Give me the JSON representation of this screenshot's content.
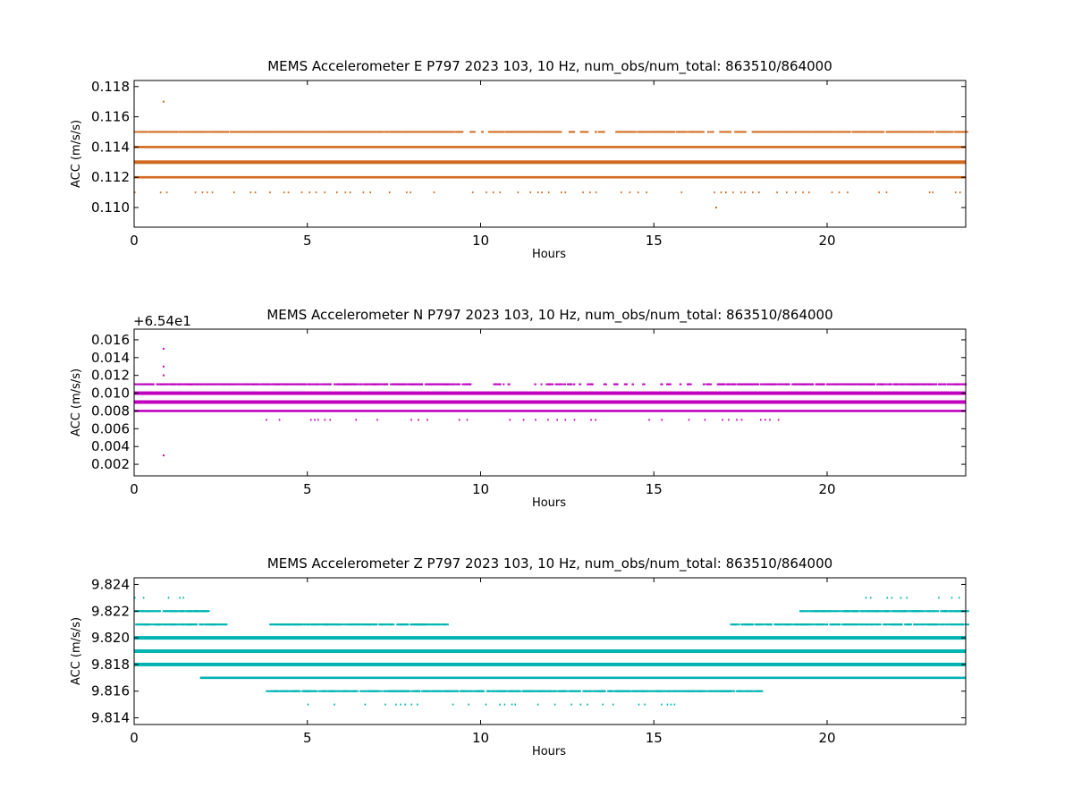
{
  "figure": {
    "background": "#ffffff"
  },
  "chart_data": [
    {
      "type": "scatter",
      "title": "MEMS Accelerometer E P797 2023 103, 10 Hz, num_obs/num_total: 863510/864000",
      "xlabel": "Hours",
      "ylabel": "ACC (m/s/s)",
      "xlim": [
        0,
        24
      ],
      "ylim": [
        0.1087,
        0.1184
      ],
      "x_ticks": [
        0,
        5,
        10,
        15,
        20
      ],
      "x_tick_labels": [
        "0",
        "5",
        "10",
        "15",
        "20"
      ],
      "y_ticks": [
        0.11,
        0.112,
        0.114,
        0.116,
        0.118
      ],
      "y_tick_labels": [
        "0.110",
        "0.112",
        "0.114",
        "0.116",
        "0.118"
      ],
      "offset_text": "",
      "color": "#d2691e",
      "bands": [
        {
          "y": 0.115,
          "density": "medium",
          "gaps": [
            [
              16.8,
              17.8
            ],
            [
              12.2,
              13.8
            ],
            [
              9.2,
              10.2
            ]
          ]
        },
        {
          "y": 0.114,
          "density": "dense",
          "gaps": []
        },
        {
          "y": 0.113,
          "density": "very-dense",
          "gaps": []
        },
        {
          "y": 0.112,
          "density": "dense",
          "gaps": []
        },
        {
          "y": 0.111,
          "density": "sparse",
          "gaps": []
        }
      ],
      "outliers": [
        {
          "x": 0.85,
          "y": 0.117
        },
        {
          "x": 16.8,
          "y": 0.11
        }
      ]
    },
    {
      "type": "scatter",
      "title": "MEMS Accelerometer N P797 2023 103, 10 Hz, num_obs/num_total: 863510/864000",
      "xlabel": "Hours",
      "ylabel": "ACC (m/s/s)",
      "xlim": [
        0,
        24
      ],
      "ylim": [
        0.0007,
        0.0172
      ],
      "x_ticks": [
        0,
        5,
        10,
        15,
        20
      ],
      "x_tick_labels": [
        "0",
        "5",
        "10",
        "15",
        "20"
      ],
      "y_ticks": [
        0.002,
        0.004,
        0.006,
        0.008,
        0.01,
        0.012,
        0.014,
        0.016
      ],
      "y_tick_labels": [
        "0.002",
        "0.004",
        "0.006",
        "0.008",
        "0.010",
        "0.012",
        "0.014",
        "0.016"
      ],
      "offset_text": "+6.54e1",
      "color": "#bf00bf",
      "bands": [
        {
          "y": 0.011,
          "density": "medium",
          "gaps": [
            [
              9.2,
              16.8
            ]
          ]
        },
        {
          "y": 0.01,
          "density": "very-dense",
          "gaps": []
        },
        {
          "y": 0.009,
          "density": "very-dense",
          "gaps": []
        },
        {
          "y": 0.008,
          "density": "dense",
          "gaps": []
        },
        {
          "y": 0.007,
          "density": "sparse",
          "range": [
            3.8,
            18.6
          ],
          "gaps": []
        }
      ],
      "outliers": [
        {
          "x": 0.85,
          "y": 0.015
        },
        {
          "x": 0.85,
          "y": 0.013
        },
        {
          "x": 0.85,
          "y": 0.012
        },
        {
          "x": 0.85,
          "y": 0.003
        }
      ]
    },
    {
      "type": "scatter",
      "title": "MEMS Accelerometer Z P797 2023 103, 10 Hz, num_obs/num_total: 863510/864000",
      "xlabel": "Hours",
      "ylabel": "ACC (m/s/s)",
      "xlim": [
        0,
        24
      ],
      "ylim": [
        9.8135,
        9.8245
      ],
      "x_ticks": [
        0,
        5,
        10,
        15,
        20
      ],
      "x_tick_labels": [
        "0",
        "5",
        "10",
        "15",
        "20"
      ],
      "y_ticks": [
        9.814,
        9.816,
        9.818,
        9.82,
        9.822,
        9.824
      ],
      "y_tick_labels": [
        "9.814",
        "9.816",
        "9.818",
        "9.820",
        "9.822",
        "9.824"
      ],
      "offset_text": "",
      "color": "#00b4b4",
      "bands": [
        {
          "y": 9.823,
          "density": "sparse",
          "segments": [
            [
              0,
              1.8
            ],
            [
              21.1,
              24
            ]
          ]
        },
        {
          "y": 9.822,
          "density": "medium",
          "segments": [
            [
              0,
              2.1
            ],
            [
              19.2,
              24
            ]
          ]
        },
        {
          "y": 9.821,
          "density": "medium",
          "segments": [
            [
              0,
              2.6
            ],
            [
              3.9,
              9.0
            ],
            [
              17.2,
              24
            ]
          ]
        },
        {
          "y": 9.82,
          "density": "very-dense",
          "segments": [
            [
              0,
              24
            ]
          ]
        },
        {
          "y": 9.819,
          "density": "very-dense",
          "segments": [
            [
              0,
              24
            ]
          ]
        },
        {
          "y": 9.818,
          "density": "very-dense",
          "segments": [
            [
              0,
              24
            ]
          ]
        },
        {
          "y": 9.817,
          "density": "dense",
          "segments": [
            [
              1.9,
              24
            ]
          ]
        },
        {
          "y": 9.816,
          "density": "medium",
          "segments": [
            [
              3.8,
              18.1
            ]
          ]
        },
        {
          "y": 9.815,
          "density": "sparse",
          "segments": [
            [
              5.0,
              16.9
            ]
          ]
        }
      ],
      "outliers": []
    }
  ]
}
